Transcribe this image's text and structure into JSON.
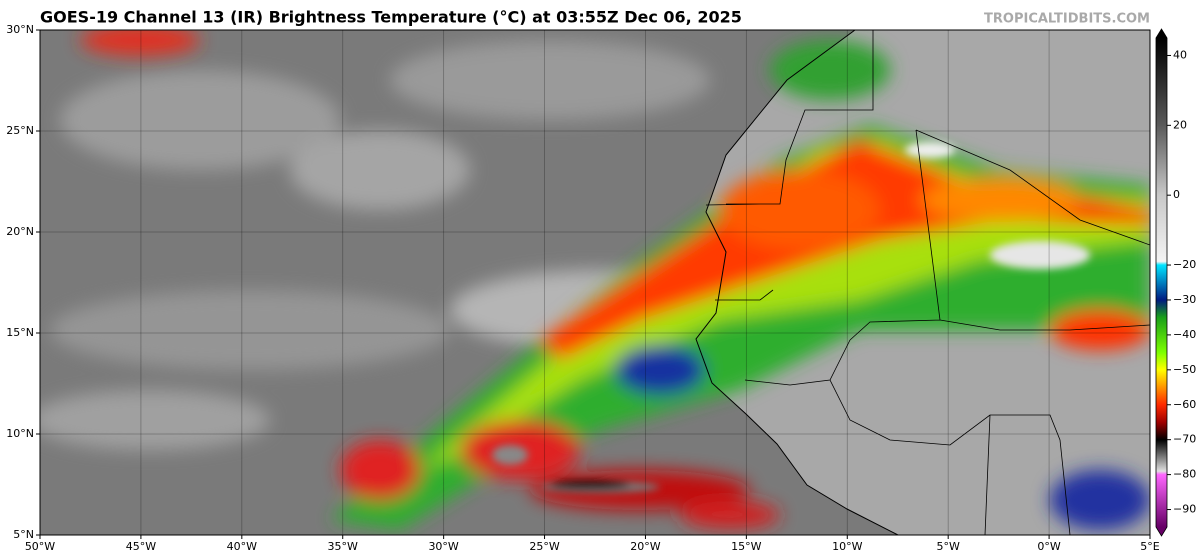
{
  "chart_data": {
    "type": "map",
    "title": "GOES-19 Channel 13 (IR) Brightness Temperature (°C) at 03:55Z Dec 06, 2025",
    "credit": "TROPICALTIDBITS.COM",
    "xlim": [
      -50,
      5
    ],
    "ylim": [
      5,
      30
    ],
    "xticks": [
      {
        "value": -50,
        "label": "50°W"
      },
      {
        "value": -45,
        "label": "45°W"
      },
      {
        "value": -40,
        "label": "40°W"
      },
      {
        "value": -35,
        "label": "35°W"
      },
      {
        "value": -30,
        "label": "30°W"
      },
      {
        "value": -25,
        "label": "25°W"
      },
      {
        "value": -20,
        "label": "20°W"
      },
      {
        "value": -15,
        "label": "15°W"
      },
      {
        "value": -10,
        "label": "10°W"
      },
      {
        "value": -5,
        "label": "5°W"
      },
      {
        "value": 0,
        "label": "0°W"
      },
      {
        "value": 5,
        "label": "5°E"
      }
    ],
    "yticks": [
      {
        "value": 5,
        "label": "5°N"
      },
      {
        "value": 10,
        "label": "10°N"
      },
      {
        "value": 15,
        "label": "15°N"
      },
      {
        "value": 20,
        "label": "20°N"
      },
      {
        "value": 25,
        "label": "25°N"
      },
      {
        "value": 30,
        "label": "30°N"
      }
    ],
    "grid": true,
    "colorbar": {
      "lim": [
        -95,
        45
      ],
      "ticks": [
        40,
        20,
        0,
        {
          "value": -20,
          "label": "−20"
        },
        {
          "value": -30,
          "label": "−30"
        },
        {
          "value": -40,
          "label": "−40"
        },
        {
          "value": -50,
          "label": "−50"
        },
        {
          "value": -60,
          "label": "−60"
        },
        {
          "value": -70,
          "label": "−70"
        },
        {
          "value": -80,
          "label": "−80"
        },
        {
          "value": -90,
          "label": "−90"
        }
      ],
      "colorscale": [
        {
          "value": 45,
          "color": "#000000"
        },
        {
          "value": 20,
          "color": "#5a5a5a"
        },
        {
          "value": 0,
          "color": "#c8c8c8"
        },
        {
          "value": -19,
          "color": "#f4f4f4"
        },
        {
          "value": -20,
          "color": "#00e5ff"
        },
        {
          "value": -30,
          "color": "#001a80"
        },
        {
          "value": -35,
          "color": "#1aa01a"
        },
        {
          "value": -45,
          "color": "#7cff00"
        },
        {
          "value": -50,
          "color": "#ffff00"
        },
        {
          "value": -60,
          "color": "#ff2a00"
        },
        {
          "value": -65,
          "color": "#a00000"
        },
        {
          "value": -70,
          "color": "#000000"
        },
        {
          "value": -79,
          "color": "#e0e0e0"
        },
        {
          "value": -80,
          "color": "#ff66ff"
        },
        {
          "value": -95,
          "color": "#660066"
        }
      ]
    }
  }
}
